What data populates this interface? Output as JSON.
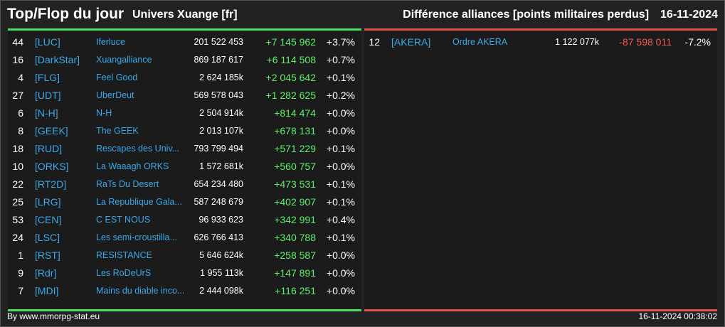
{
  "header": {
    "title": "Top/Flop du jour",
    "universe": "Univers Xuange [fr]",
    "category": "Différence alliances [points militaires perdus]",
    "date": "16-11-2024"
  },
  "colors": {
    "positive": "#5fef6c",
    "negative": "#ef5a56",
    "link": "#3ea8e8",
    "top_bar": "#4cdf5c",
    "flop_bar": "#e0524e"
  },
  "top": [
    {
      "rank": "44",
      "tag": "[LUC]",
      "name": "Iferluce",
      "total": "201 522 453",
      "diff": "+7 145 962",
      "pct": "+3.7%"
    },
    {
      "rank": "16",
      "tag": "[DarkStar]",
      "name": "Xuangalliance",
      "total": "869 187 617",
      "diff": "+6 114 508",
      "pct": "+0.7%"
    },
    {
      "rank": "4",
      "tag": "[FLG]",
      "name": "Feel Good",
      "total": "2 624 185k",
      "diff": "+2 045 642",
      "pct": "+0.1%"
    },
    {
      "rank": "27",
      "tag": "[UDT]",
      "name": "UberDeut",
      "total": "569 578 043",
      "diff": "+1 282 625",
      "pct": "+0.2%"
    },
    {
      "rank": "6",
      "tag": "[N-H]",
      "name": "N-H",
      "total": "2 504 914k",
      "diff": "+814 474",
      "pct": "+0.0%"
    },
    {
      "rank": "8",
      "tag": "[GEEK]",
      "name": "The GEEK",
      "total": "2 013 107k",
      "diff": "+678 131",
      "pct": "+0.0%"
    },
    {
      "rank": "18",
      "tag": "[RUD]",
      "name": "Rescapes des Univ...",
      "total": "793 799 494",
      "diff": "+571 229",
      "pct": "+0.1%"
    },
    {
      "rank": "10",
      "tag": "[ORKS]",
      "name": "La Waaagh ORKS",
      "total": "1 572 681k",
      "diff": "+560 757",
      "pct": "+0.0%"
    },
    {
      "rank": "22",
      "tag": "[RT2D]",
      "name": "RaTs Du Desert",
      "total": "654 234 480",
      "diff": "+473 531",
      "pct": "+0.1%"
    },
    {
      "rank": "25",
      "tag": "[LRG]",
      "name": "La Republique Gala...",
      "total": "587 248 679",
      "diff": "+402 907",
      "pct": "+0.1%"
    },
    {
      "rank": "53",
      "tag": "[CEN]",
      "name": "C EST NOUS",
      "total": "96 933 623",
      "diff": "+342 991",
      "pct": "+0.4%"
    },
    {
      "rank": "24",
      "tag": "[LSC]",
      "name": "Les semi-croustilla...",
      "total": "626 766 413",
      "diff": "+340 788",
      "pct": "+0.1%"
    },
    {
      "rank": "1",
      "tag": "[RST]",
      "name": "RESISTANCE",
      "total": "5 646 624k",
      "diff": "+258 587",
      "pct": "+0.0%"
    },
    {
      "rank": "9",
      "tag": "[Rdr]",
      "name": "Les RoDeUrS",
      "total": "1 955 113k",
      "diff": "+147 891",
      "pct": "+0.0%"
    },
    {
      "rank": "7",
      "tag": "[MDI]",
      "name": "Mains du diable inco...",
      "total": "2 444 098k",
      "diff": "+116 251",
      "pct": "+0.0%"
    }
  ],
  "flop": [
    {
      "rank": "12",
      "tag": "[AKERA]",
      "name": "Ordre AKERA",
      "total": "1 122 077k",
      "diff": "-87 598 011",
      "pct": "-7.2%"
    }
  ],
  "footer": {
    "source": "By www.mmorpg-stat.eu",
    "timestamp": "16-11-2024 00:38:02"
  }
}
